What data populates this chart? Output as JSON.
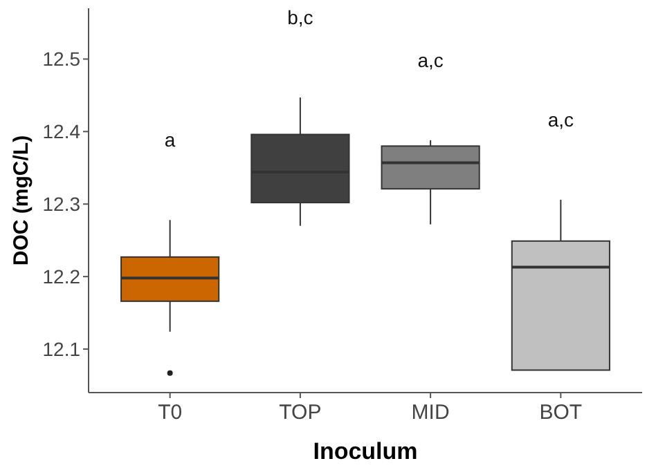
{
  "chart_data": {
    "type": "box",
    "xlabel": "Inoculum",
    "ylabel": "DOC (mgC/L)",
    "categories": [
      "T0",
      "TOP",
      "MID",
      "BOT"
    ],
    "colors": [
      "#cc6600",
      "#404040",
      "#7f7f7f",
      "#c0c0c0"
    ],
    "boxes": [
      {
        "low": 12.124,
        "q1": 12.166,
        "median": 12.198,
        "q3": 12.227,
        "high": 12.278,
        "outliers": [
          12.067
        ]
      },
      {
        "low": 12.27,
        "q1": 12.302,
        "median": 12.344,
        "q3": 12.396,
        "high": 12.447
      },
      {
        "low": 12.272,
        "q1": 12.321,
        "median": 12.357,
        "q3": 12.38,
        "high": 12.388
      },
      {
        "low": 12.071,
        "q1": 12.071,
        "median": 12.213,
        "q3": 12.249,
        "high": 12.306
      }
    ],
    "ylim": [
      12.04,
      12.57
    ],
    "yticks": [
      12.1,
      12.2,
      12.3,
      12.4,
      12.5
    ],
    "grid": false,
    "annotations": [
      "a",
      "b,c",
      "a,c",
      "a,c"
    ]
  }
}
